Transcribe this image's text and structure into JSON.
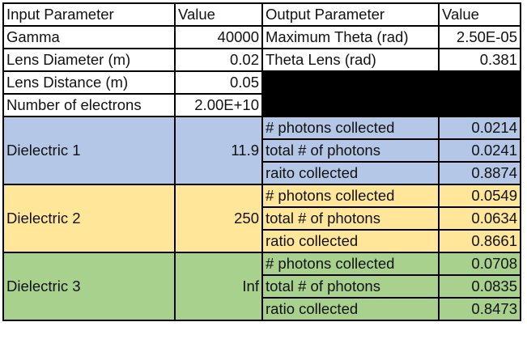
{
  "header": {
    "input_parameter": "Input Parameter",
    "input_value": "Value",
    "output_parameter": "Output Parameter",
    "output_value": "Value"
  },
  "inputs": [
    {
      "label": "Gamma",
      "value": "40000"
    },
    {
      "label": "Lens Diameter (m)",
      "value": "0.02"
    },
    {
      "label": "Lens Distance (m)",
      "value": "0.05"
    },
    {
      "label": "Number of electrons",
      "value": "2.00E+10"
    }
  ],
  "outputs": [
    {
      "label": "Maximum Theta (rad)",
      "value": "2.50E-05"
    },
    {
      "label": "Theta Lens (rad)",
      "value": "0.381"
    }
  ],
  "dielectrics": [
    {
      "name": "Dielectric 1",
      "value": "11.9",
      "color": "#b4c7e7",
      "rows": [
        {
          "label": "# photons collected",
          "value": "0.0214"
        },
        {
          "label": "total # of photons",
          "value": "0.0241"
        },
        {
          "label": "raito collected",
          "value": "0.8874"
        }
      ]
    },
    {
      "name": "Dielectric 2",
      "value": "250",
      "color": "#ffe699",
      "rows": [
        {
          "label": "# photons collected",
          "value": "0.0549"
        },
        {
          "label": "total # of photons",
          "value": "0.0634"
        },
        {
          "label": "ratio collected",
          "value": "0.8661"
        }
      ]
    },
    {
      "name": "Dielectric 3",
      "value": "Inf",
      "color": "#a9d18e",
      "rows": [
        {
          "label": "# photons collected",
          "value": "0.0708"
        },
        {
          "label": "total # of photons",
          "value": "0.0835"
        },
        {
          "label": "ratio collected",
          "value": "0.8473"
        }
      ]
    }
  ]
}
